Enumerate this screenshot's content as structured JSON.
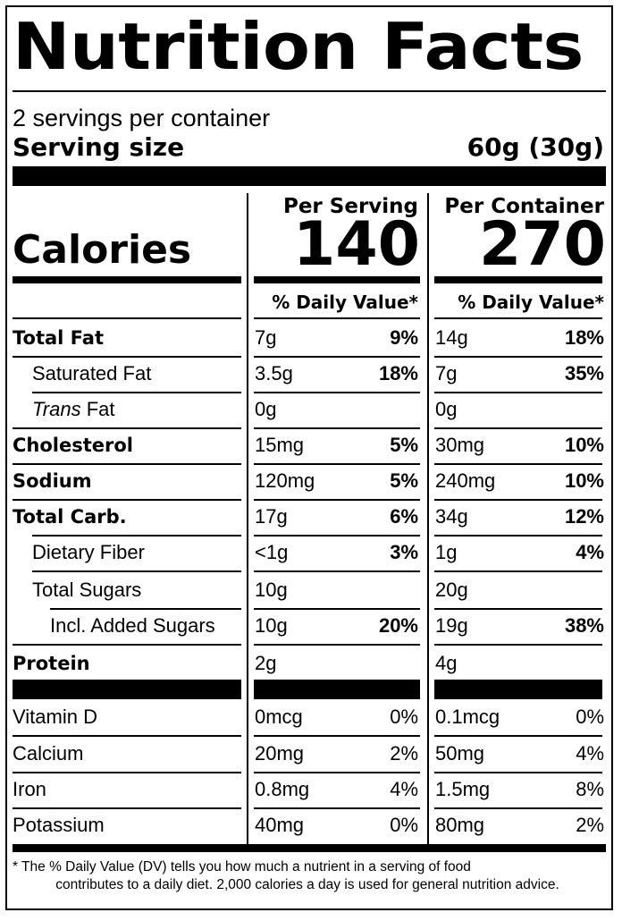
{
  "title": "Nutrition Facts",
  "servings_per_container": "2 servings per container",
  "serving_size_label": "Serving size",
  "serving_size_value": "60g (30g)",
  "per_serving_label": "Per Serving",
  "per_container_label": "Per Container",
  "calories_label": "Calories",
  "calories_per_serving": "140",
  "calories_per_container": "270",
  "daily_value_header": "% Daily Value*",
  "nutrients": [
    {
      "name": "Total Fat",
      "serving_amount": "7g",
      "serving_dv": "9%",
      "container_amount": "14g",
      "container_dv": "18%"
    },
    {
      "name": "Saturated Fat",
      "serving_amount": "3.5g",
      "serving_dv": "18%",
      "container_amount": "7g",
      "container_dv": "35%"
    },
    {
      "name_italic": "Trans",
      "name_rest": " Fat",
      "serving_amount": "0g",
      "serving_dv": "",
      "container_amount": "0g",
      "container_dv": ""
    },
    {
      "name": "Cholesterol",
      "serving_amount": "15mg",
      "serving_dv": "5%",
      "container_amount": "30mg",
      "container_dv": "10%"
    },
    {
      "name": "Sodium",
      "serving_amount": "120mg",
      "serving_dv": "5%",
      "container_amount": "240mg",
      "container_dv": "10%"
    },
    {
      "name": "Total Carb.",
      "serving_amount": "17g",
      "serving_dv": "6%",
      "container_amount": "34g",
      "container_dv": "12%"
    },
    {
      "name": "Dietary Fiber",
      "serving_amount": "<1g",
      "serving_dv": "3%",
      "container_amount": "1g",
      "container_dv": "4%"
    },
    {
      "name": "Total Sugars",
      "serving_amount": "10g",
      "serving_dv": "",
      "container_amount": "20g",
      "container_dv": ""
    },
    {
      "name": "Incl. Added Sugars",
      "serving_amount": "10g",
      "serving_dv": "20%",
      "container_amount": "19g",
      "container_dv": "38%"
    },
    {
      "name": "Protein",
      "serving_amount": "2g",
      "serving_dv": "",
      "container_amount": "4g",
      "container_dv": ""
    }
  ],
  "vitamins": [
    {
      "name": "Vitamin D",
      "serving_amount": "0mcg",
      "serving_dv": "0%",
      "container_amount": "0.1mcg",
      "container_dv": "0%"
    },
    {
      "name": "Calcium",
      "serving_amount": "20mg",
      "serving_dv": "2%",
      "container_amount": "50mg",
      "container_dv": "4%"
    },
    {
      "name": "Iron",
      "serving_amount": "0.8mg",
      "serving_dv": "4%",
      "container_amount": "1.5mg",
      "container_dv": "8%"
    },
    {
      "name": "Potassium",
      "serving_amount": "40mg",
      "serving_dv": "0%",
      "container_amount": "80mg",
      "container_dv": "2%"
    }
  ],
  "footnote_line1": "* The % Daily Value (DV) tells you how much a nutrient in a serving of food",
  "footnote_line2": "contributes to a daily diet. 2,000 calories a day is used for general nutrition advice."
}
